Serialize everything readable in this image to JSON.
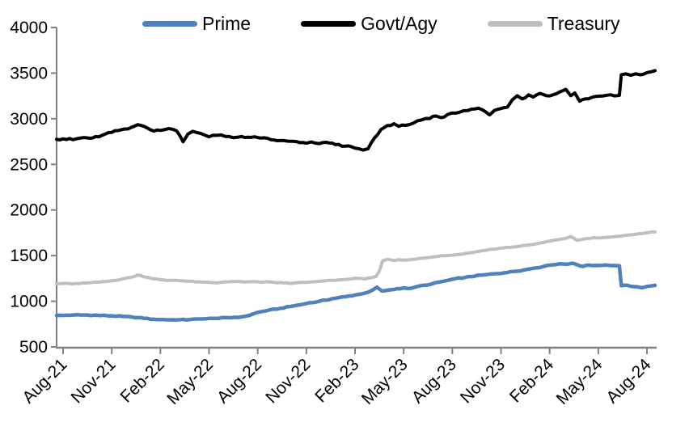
{
  "colors": {
    "axis": "#808080",
    "text": "#000000",
    "background": "#ffffff"
  },
  "chart_data": {
    "type": "line",
    "title": "",
    "xlabel": "",
    "ylabel": "",
    "grid": "off",
    "legend_position": "top",
    "x_axis": {
      "unit": "months since Aug-2021",
      "tick_labels": [
        "Aug-21",
        "Nov-21",
        "Feb-22",
        "May-22",
        "Aug-22",
        "Nov-22",
        "Feb-23",
        "May-23",
        "Aug-23",
        "Nov-23",
        "Feb-24",
        "May-24",
        "Aug-24"
      ],
      "tick_months": [
        0,
        3,
        6,
        9,
        12,
        15,
        18,
        21,
        24,
        27,
        30,
        33,
        36
      ],
      "label_rotation_deg": -45,
      "data_range_months": [
        -0.4,
        36.5
      ]
    },
    "y_axis": {
      "min": 500,
      "max": 4000,
      "tick_step": 500,
      "tick_values": [
        500,
        1000,
        1500,
        2000,
        2500,
        3000,
        3500,
        4000
      ],
      "tick_labels": [
        "500",
        "1000",
        "1500",
        "2000",
        "2500",
        "3000",
        "3500",
        "4000"
      ]
    },
    "series": [
      {
        "name": "Prime",
        "color": "#4f81bd",
        "width": 4.5,
        "noise": 5,
        "points": [
          [
            -0.4,
            843
          ],
          [
            0,
            845
          ],
          [
            0.7,
            850
          ],
          [
            1.5,
            849
          ],
          [
            2.3,
            844
          ],
          [
            3,
            840
          ],
          [
            3.7,
            833
          ],
          [
            4.4,
            822
          ],
          [
            5,
            812
          ],
          [
            5.6,
            803
          ],
          [
            6.2,
            799
          ],
          [
            7,
            795
          ],
          [
            7.8,
            799
          ],
          [
            8.6,
            806
          ],
          [
            9.4,
            812
          ],
          [
            10.2,
            819
          ],
          [
            11,
            829
          ],
          [
            11.5,
            846
          ],
          [
            12,
            878
          ],
          [
            12.7,
            903
          ],
          [
            13.4,
            923
          ],
          [
            14.2,
            948
          ],
          [
            15,
            975
          ],
          [
            15.8,
            1000
          ],
          [
            16.6,
            1028
          ],
          [
            17.4,
            1050
          ],
          [
            18.2,
            1075
          ],
          [
            18.8,
            1098
          ],
          [
            19.1,
            1125
          ],
          [
            19.35,
            1155
          ],
          [
            19.65,
            1112
          ],
          [
            20,
            1120
          ],
          [
            20.6,
            1137
          ],
          [
            21,
            1146
          ],
          [
            21.3,
            1139
          ],
          [
            21.7,
            1155
          ],
          [
            22.2,
            1175
          ],
          [
            22.7,
            1188
          ],
          [
            23.2,
            1210
          ],
          [
            23.7,
            1228
          ],
          [
            24.2,
            1248
          ],
          [
            24.8,
            1262
          ],
          [
            25.4,
            1276
          ],
          [
            26,
            1290
          ],
          [
            26.6,
            1301
          ],
          [
            27.2,
            1311
          ],
          [
            27.8,
            1326
          ],
          [
            28.4,
            1342
          ],
          [
            29,
            1361
          ],
          [
            29.6,
            1380
          ],
          [
            30.1,
            1398
          ],
          [
            30.6,
            1410
          ],
          [
            31,
            1406
          ],
          [
            31.35,
            1416
          ],
          [
            31.7,
            1399
          ],
          [
            32.05,
            1381
          ],
          [
            32.4,
            1396
          ],
          [
            33,
            1391
          ],
          [
            33.5,
            1397
          ],
          [
            34,
            1391
          ],
          [
            34.3,
            1388
          ],
          [
            34.42,
            1170
          ],
          [
            34.8,
            1174
          ],
          [
            35.2,
            1160
          ],
          [
            35.7,
            1148
          ],
          [
            36,
            1162
          ],
          [
            36.5,
            1174
          ]
        ]
      },
      {
        "name": "Govt/Agy",
        "color": "#000000",
        "width": 4,
        "noise": 11,
        "points": [
          [
            -0.4,
            2775
          ],
          [
            0,
            2780
          ],
          [
            0.6,
            2770
          ],
          [
            1.2,
            2792
          ],
          [
            1.8,
            2788
          ],
          [
            2.4,
            2818
          ],
          [
            3,
            2850
          ],
          [
            3.6,
            2880
          ],
          [
            4.2,
            2905
          ],
          [
            4.6,
            2935
          ],
          [
            5,
            2915
          ],
          [
            5.4,
            2878
          ],
          [
            6,
            2872
          ],
          [
            6.5,
            2892
          ],
          [
            7,
            2868
          ],
          [
            7.4,
            2748
          ],
          [
            7.7,
            2832
          ],
          [
            8,
            2862
          ],
          [
            8.5,
            2838
          ],
          [
            9,
            2802
          ],
          [
            9.5,
            2818
          ],
          [
            10,
            2806
          ],
          [
            10.5,
            2792
          ],
          [
            11,
            2806
          ],
          [
            11.6,
            2796
          ],
          [
            12.2,
            2788
          ],
          [
            12.8,
            2772
          ],
          [
            13.4,
            2760
          ],
          [
            14,
            2752
          ],
          [
            14.6,
            2738
          ],
          [
            15,
            2732
          ],
          [
            15.3,
            2746
          ],
          [
            15.8,
            2728
          ],
          [
            16.2,
            2742
          ],
          [
            16.8,
            2716
          ],
          [
            17.4,
            2700
          ],
          [
            18,
            2678
          ],
          [
            18.5,
            2657
          ],
          [
            18.8,
            2672
          ],
          [
            19.2,
            2790
          ],
          [
            19.6,
            2882
          ],
          [
            20,
            2926
          ],
          [
            20.4,
            2946
          ],
          [
            20.7,
            2916
          ],
          [
            21.1,
            2928
          ],
          [
            21.6,
            2952
          ],
          [
            22.1,
            2986
          ],
          [
            22.6,
            3002
          ],
          [
            23,
            3030
          ],
          [
            23.3,
            3012
          ],
          [
            23.7,
            3046
          ],
          [
            24.2,
            3062
          ],
          [
            24.7,
            3088
          ],
          [
            25.2,
            3106
          ],
          [
            25.6,
            3116
          ],
          [
            26,
            3082
          ],
          [
            26.3,
            3042
          ],
          [
            26.6,
            3092
          ],
          [
            27,
            3112
          ],
          [
            27.4,
            3128
          ],
          [
            27.7,
            3208
          ],
          [
            28,
            3252
          ],
          [
            28.3,
            3218
          ],
          [
            28.7,
            3262
          ],
          [
            29,
            3238
          ],
          [
            29.4,
            3278
          ],
          [
            29.8,
            3252
          ],
          [
            30.2,
            3262
          ],
          [
            30.6,
            3292
          ],
          [
            31,
            3322
          ],
          [
            31.3,
            3252
          ],
          [
            31.55,
            3282
          ],
          [
            31.85,
            3192
          ],
          [
            32.2,
            3218
          ],
          [
            32.6,
            3234
          ],
          [
            33,
            3247
          ],
          [
            33.5,
            3257
          ],
          [
            34,
            3250
          ],
          [
            34.3,
            3256
          ],
          [
            34.42,
            3482
          ],
          [
            34.7,
            3492
          ],
          [
            35,
            3476
          ],
          [
            35.3,
            3492
          ],
          [
            35.6,
            3481
          ],
          [
            36,
            3506
          ],
          [
            36.3,
            3516
          ],
          [
            36.5,
            3527
          ]
        ]
      },
      {
        "name": "Treasury",
        "color": "#bfbfbf",
        "width": 4,
        "noise": 5,
        "points": [
          [
            -0.4,
            1192
          ],
          [
            0,
            1195
          ],
          [
            0.6,
            1190
          ],
          [
            1.2,
            1201
          ],
          [
            1.8,
            1206
          ],
          [
            2.4,
            1214
          ],
          [
            3,
            1225
          ],
          [
            3.6,
            1242
          ],
          [
            4.2,
            1262
          ],
          [
            4.6,
            1288
          ],
          [
            5,
            1266
          ],
          [
            5.5,
            1248
          ],
          [
            6,
            1236
          ],
          [
            6.6,
            1228
          ],
          [
            7.2,
            1224
          ],
          [
            7.8,
            1219
          ],
          [
            8.4,
            1213
          ],
          [
            9,
            1208
          ],
          [
            9.5,
            1201
          ],
          [
            10,
            1212
          ],
          [
            10.6,
            1216
          ],
          [
            11.2,
            1210
          ],
          [
            11.8,
            1216
          ],
          [
            12.4,
            1211
          ],
          [
            13,
            1206
          ],
          [
            13.6,
            1200
          ],
          [
            14.2,
            1199
          ],
          [
            14.8,
            1206
          ],
          [
            15.4,
            1212
          ],
          [
            16,
            1222
          ],
          [
            16.6,
            1229
          ],
          [
            17.2,
            1236
          ],
          [
            17.8,
            1245
          ],
          [
            18.3,
            1251
          ],
          [
            18.6,
            1244
          ],
          [
            19,
            1258
          ],
          [
            19.3,
            1272
          ],
          [
            19.5,
            1330
          ],
          [
            19.7,
            1442
          ],
          [
            20,
            1460
          ],
          [
            20.3,
            1450
          ],
          [
            20.7,
            1456
          ],
          [
            21.1,
            1452
          ],
          [
            21.6,
            1459
          ],
          [
            22.1,
            1471
          ],
          [
            22.6,
            1481
          ],
          [
            23.1,
            1491
          ],
          [
            23.6,
            1499
          ],
          [
            24.1,
            1506
          ],
          [
            24.6,
            1516
          ],
          [
            25.1,
            1531
          ],
          [
            25.6,
            1546
          ],
          [
            26.1,
            1559
          ],
          [
            26.6,
            1571
          ],
          [
            27.1,
            1583
          ],
          [
            27.6,
            1591
          ],
          [
            28.1,
            1601
          ],
          [
            28.6,
            1613
          ],
          [
            29.1,
            1626
          ],
          [
            29.6,
            1642
          ],
          [
            30.1,
            1662
          ],
          [
            30.6,
            1677
          ],
          [
            31,
            1690
          ],
          [
            31.3,
            1708
          ],
          [
            31.7,
            1667
          ],
          [
            32,
            1679
          ],
          [
            32.5,
            1689
          ],
          [
            33,
            1694
          ],
          [
            33.5,
            1701
          ],
          [
            34,
            1709
          ],
          [
            34.5,
            1717
          ],
          [
            35,
            1727
          ],
          [
            35.5,
            1740
          ],
          [
            36,
            1750
          ],
          [
            36.5,
            1759
          ]
        ]
      }
    ]
  }
}
